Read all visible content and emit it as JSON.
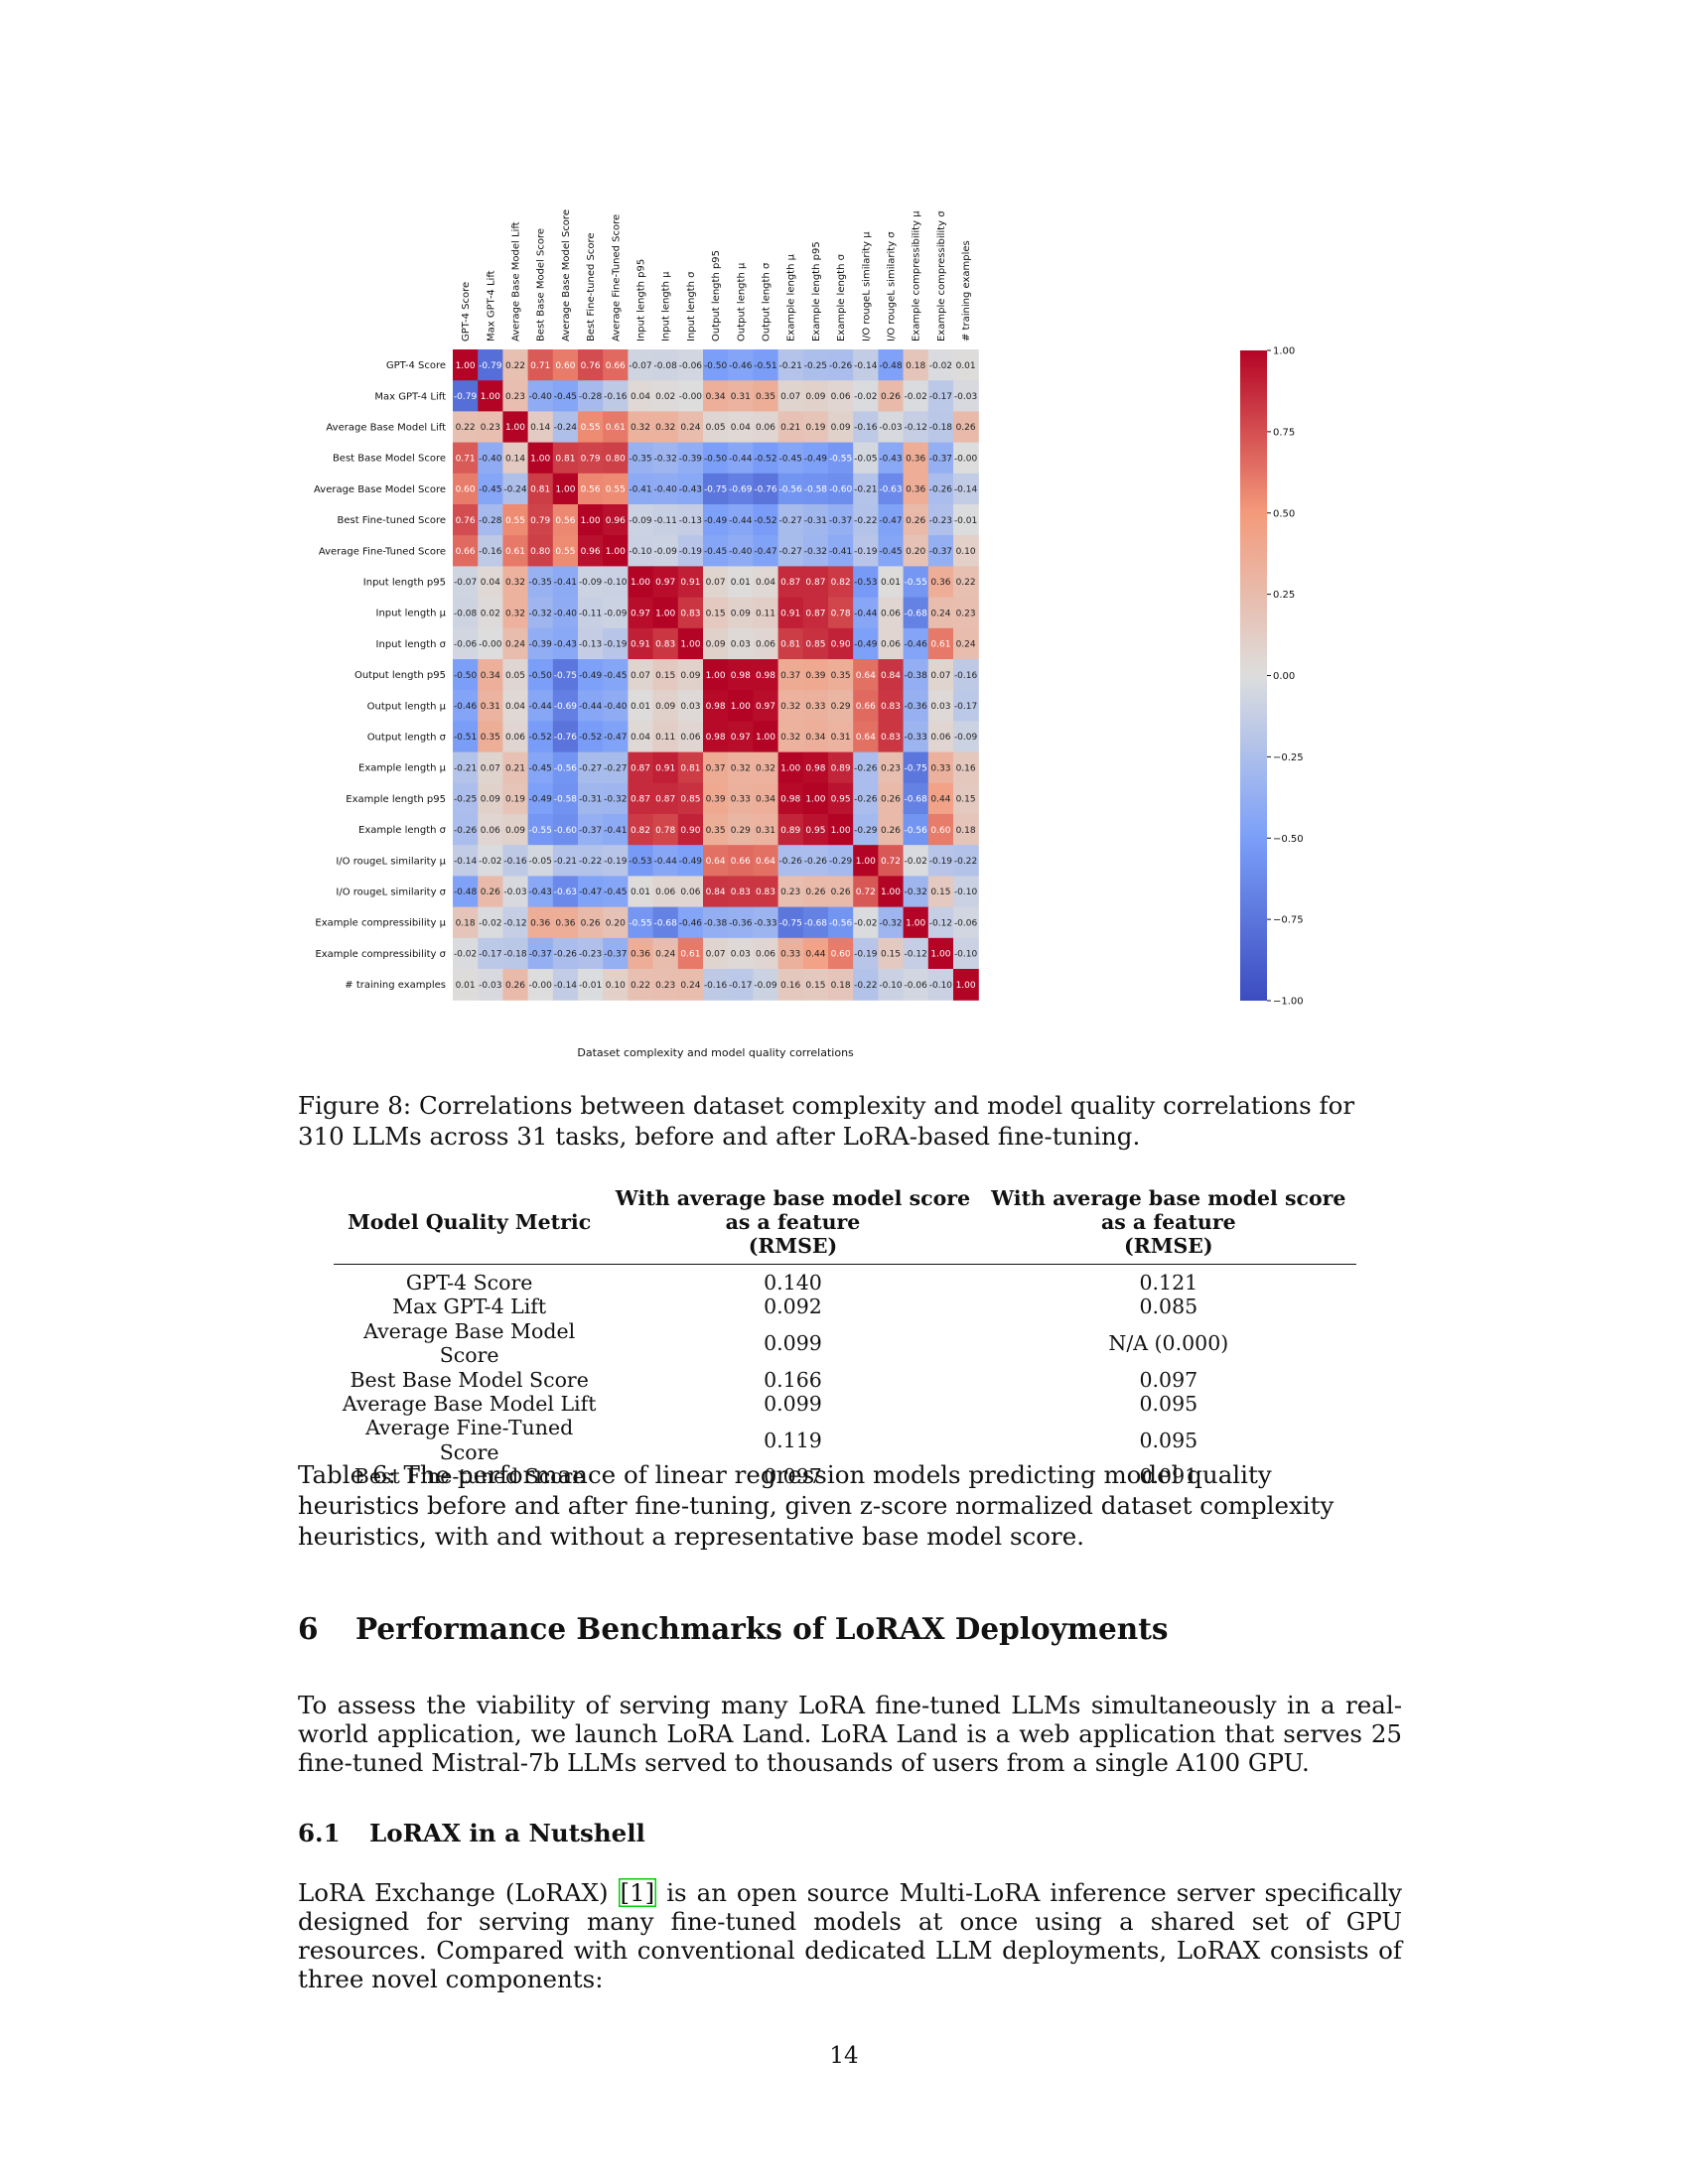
{
  "figure8": {
    "chart_title": "Dataset complexity and model quality correlations",
    "caption_label": "Figure 8:",
    "caption_text": "Correlations between dataset complexity and model quality correlations for 310 LLMs across 31 tasks, before and after LoRA-based fine-tuning."
  },
  "chart_data": {
    "type": "heatmap",
    "title": "Dataset complexity and model quality correlations",
    "labels": [
      "GPT-4 Score",
      "Max GPT-4 Lift",
      "Average Base Model Lift",
      "Best Base Model Score",
      "Average Base Model Score",
      "Best Fine-tuned Score",
      "Average Fine-Tuned Score",
      "Input length p95",
      "Input length μ",
      "Input length σ",
      "Output length p95",
      "Output length μ",
      "Output length σ",
      "Example length μ",
      "Example length p95",
      "Example length σ",
      "I/O rougeL similarity μ",
      "I/O rougeL similarity σ",
      "Example compressibility μ",
      "Example compressibility σ",
      "# training examples"
    ],
    "matrix": [
      [
        1.0,
        -0.79,
        0.22,
        0.71,
        0.6,
        0.76,
        0.66,
        -0.07,
        -0.08,
        -0.06,
        -0.5,
        -0.46,
        -0.51,
        -0.21,
        -0.25,
        -0.26,
        -0.14,
        -0.48,
        0.18,
        -0.02,
        0.01
      ],
      [
        -0.79,
        1.0,
        0.23,
        -0.4,
        -0.45,
        -0.28,
        -0.16,
        0.04,
        0.02,
        -0.0,
        0.34,
        0.31,
        0.35,
        0.07,
        0.09,
        0.06,
        -0.02,
        0.26,
        -0.02,
        -0.17,
        -0.03
      ],
      [
        0.22,
        0.23,
        1.0,
        0.14,
        -0.24,
        0.55,
        0.61,
        0.32,
        0.32,
        0.24,
        0.05,
        0.04,
        0.06,
        0.21,
        0.19,
        0.09,
        -0.16,
        -0.03,
        -0.12,
        -0.18,
        0.26
      ],
      [
        0.71,
        -0.4,
        0.14,
        1.0,
        0.81,
        0.79,
        0.8,
        -0.35,
        -0.32,
        -0.39,
        -0.5,
        -0.44,
        -0.52,
        -0.45,
        -0.49,
        -0.55,
        -0.05,
        -0.43,
        0.36,
        -0.37,
        -0.0
      ],
      [
        0.6,
        -0.45,
        -0.24,
        0.81,
        1.0,
        0.56,
        0.55,
        -0.41,
        -0.4,
        -0.43,
        -0.75,
        -0.69,
        -0.76,
        -0.56,
        -0.58,
        -0.6,
        -0.21,
        -0.63,
        0.36,
        -0.26,
        -0.14
      ],
      [
        0.76,
        -0.28,
        0.55,
        0.79,
        0.56,
        1.0,
        0.96,
        -0.09,
        -0.11,
        -0.13,
        -0.49,
        -0.44,
        -0.52,
        -0.27,
        -0.31,
        -0.37,
        -0.22,
        -0.47,
        0.26,
        -0.23,
        -0.01
      ],
      [
        0.66,
        -0.16,
        0.61,
        0.8,
        0.55,
        0.96,
        1.0,
        -0.1,
        -0.09,
        -0.19,
        -0.45,
        -0.4,
        -0.47,
        -0.27,
        -0.32,
        -0.41,
        -0.19,
        -0.45,
        0.2,
        -0.37,
        0.1
      ],
      [
        -0.07,
        0.04,
        0.32,
        -0.35,
        -0.41,
        -0.09,
        -0.1,
        1.0,
        0.97,
        0.91,
        0.07,
        0.01,
        0.04,
        0.87,
        0.87,
        0.82,
        -0.53,
        0.01,
        -0.55,
        0.36,
        0.22
      ],
      [
        -0.08,
        0.02,
        0.32,
        -0.32,
        -0.4,
        -0.11,
        -0.09,
        0.97,
        1.0,
        0.83,
        0.15,
        0.09,
        0.11,
        0.91,
        0.87,
        0.78,
        -0.44,
        0.06,
        -0.68,
        0.24,
        0.23
      ],
      [
        -0.06,
        -0.0,
        0.24,
        -0.39,
        -0.43,
        -0.13,
        -0.19,
        0.91,
        0.83,
        1.0,
        0.09,
        0.03,
        0.06,
        0.81,
        0.85,
        0.9,
        -0.49,
        0.06,
        -0.46,
        0.61,
        0.24
      ],
      [
        -0.5,
        0.34,
        0.05,
        -0.5,
        -0.75,
        -0.49,
        -0.45,
        0.07,
        0.15,
        0.09,
        1.0,
        0.98,
        0.98,
        0.37,
        0.39,
        0.35,
        0.64,
        0.84,
        -0.38,
        0.07,
        -0.16
      ],
      [
        -0.46,
        0.31,
        0.04,
        -0.44,
        -0.69,
        -0.44,
        -0.4,
        0.01,
        0.09,
        0.03,
        0.98,
        1.0,
        0.97,
        0.32,
        0.33,
        0.29,
        0.66,
        0.83,
        -0.36,
        0.03,
        -0.17
      ],
      [
        -0.51,
        0.35,
        0.06,
        -0.52,
        -0.76,
        -0.52,
        -0.47,
        0.04,
        0.11,
        0.06,
        0.98,
        0.97,
        1.0,
        0.32,
        0.34,
        0.31,
        0.64,
        0.83,
        -0.33,
        0.06,
        -0.09
      ],
      [
        -0.21,
        0.07,
        0.21,
        -0.45,
        -0.56,
        -0.27,
        -0.27,
        0.87,
        0.91,
        0.81,
        0.37,
        0.32,
        0.32,
        1.0,
        0.98,
        0.89,
        -0.26,
        0.23,
        -0.75,
        0.33,
        0.16
      ],
      [
        -0.25,
        0.09,
        0.19,
        -0.49,
        -0.58,
        -0.31,
        -0.32,
        0.87,
        0.87,
        0.85,
        0.39,
        0.33,
        0.34,
        0.98,
        1.0,
        0.95,
        -0.26,
        0.26,
        -0.68,
        0.44,
        0.15
      ],
      [
        -0.26,
        0.06,
        0.09,
        -0.55,
        -0.6,
        -0.37,
        -0.41,
        0.82,
        0.78,
        0.9,
        0.35,
        0.29,
        0.31,
        0.89,
        0.95,
        1.0,
        -0.29,
        0.26,
        -0.56,
        0.6,
        0.18
      ],
      [
        -0.14,
        -0.02,
        -0.16,
        -0.05,
        -0.21,
        -0.22,
        -0.19,
        -0.53,
        -0.44,
        -0.49,
        0.64,
        0.66,
        0.64,
        -0.26,
        -0.26,
        -0.29,
        1.0,
        0.72,
        -0.02,
        -0.19,
        -0.22
      ],
      [
        -0.48,
        0.26,
        -0.03,
        -0.43,
        -0.63,
        -0.47,
        -0.45,
        0.01,
        0.06,
        0.06,
        0.84,
        0.83,
        0.83,
        0.23,
        0.26,
        0.26,
        0.72,
        1.0,
        -0.32,
        0.15,
        -0.1
      ],
      [
        0.18,
        -0.02,
        -0.12,
        0.36,
        0.36,
        0.26,
        0.2,
        -0.55,
        -0.68,
        -0.46,
        -0.38,
        -0.36,
        -0.33,
        -0.75,
        -0.68,
        -0.56,
        -0.02,
        -0.32,
        1.0,
        -0.12,
        -0.06
      ],
      [
        -0.02,
        -0.17,
        -0.18,
        -0.37,
        -0.26,
        -0.23,
        -0.37,
        0.36,
        0.24,
        0.61,
        0.07,
        0.03,
        0.06,
        0.33,
        0.44,
        0.6,
        -0.19,
        0.15,
        -0.12,
        1.0,
        -0.1
      ],
      [
        0.01,
        -0.03,
        0.26,
        -0.0,
        -0.14,
        -0.01,
        0.1,
        0.22,
        0.23,
        0.24,
        -0.16,
        -0.17,
        -0.09,
        0.16,
        0.15,
        0.18,
        -0.22,
        -0.1,
        -0.06,
        -0.1,
        1.0
      ]
    ],
    "value_range": [
      -1.0,
      1.0
    ],
    "colormap": "coolwarm",
    "colorbar_ticks": [
      "1.00",
      "0.75",
      "0.50",
      "0.25",
      "0.00",
      "−0.25",
      "−0.50",
      "−0.75",
      "−1.00"
    ],
    "colorbar_tick_values": [
      1.0,
      0.75,
      0.5,
      0.25,
      0.0,
      -0.25,
      -0.5,
      -0.75,
      -1.0
    ],
    "colors": {
      "low": "#3b4cc0",
      "mid": "#dddddd",
      "high": "#b40426"
    }
  },
  "table6": {
    "headers": {
      "metric": "Model Quality Metric",
      "col1": [
        "With average base model score",
        "as a feature",
        "(RMSE)"
      ],
      "col2": [
        "With average base model score",
        "as a feature",
        "(RMSE)"
      ]
    },
    "rows": [
      {
        "metric": "GPT-4 Score",
        "col1": "0.140",
        "col2": "0.121"
      },
      {
        "metric": "Max GPT-4 Lift",
        "col1": "0.092",
        "col2": "0.085"
      },
      {
        "metric": "Average Base Model Score",
        "col1": "0.099",
        "col2": "N/A (0.000)"
      },
      {
        "metric": "Best Base Model Score",
        "col1": "0.166",
        "col2": "0.097"
      },
      {
        "metric": "Average Base Model Lift",
        "col1": "0.099",
        "col2": "0.095"
      },
      {
        "metric": "Average Fine-Tuned Score",
        "col1": "0.119",
        "col2": "0.095"
      },
      {
        "metric": "Best Fine-tuned Score",
        "col1": "0.097",
        "col2": "0.091"
      }
    ],
    "caption_label": "Table 6:",
    "caption_text": "The performance of linear regression models predicting model quality heuristics before and after fine-tuning, given z-score normalized dataset complexity heuristics, with and without a representative base model score."
  },
  "section6": {
    "number": "6",
    "title": "Performance Benchmarks of LoRAX Deployments",
    "paragraph": "To assess the viability of serving many LoRA fine-tuned LLMs simultaneously in a real-world application, we launch LoRA Land. LoRA Land is a web application that serves 25 fine-tuned Mistral-7b LLMs served to thousands of users from a single A100 GPU."
  },
  "section6_1": {
    "number": "6.1",
    "title": "LoRAX in a Nutshell",
    "para_before_ref": "LoRA Exchange (LoRAX)",
    "ref": "[1]",
    "para_after_ref": "is an open source Multi-LoRA inference server specifically designed for serving many fine-tuned models at once using a shared set of GPU resources. Compared with conventional dedicated LLM deployments, LoRAX consists of three novel components:"
  },
  "page_number": "14"
}
